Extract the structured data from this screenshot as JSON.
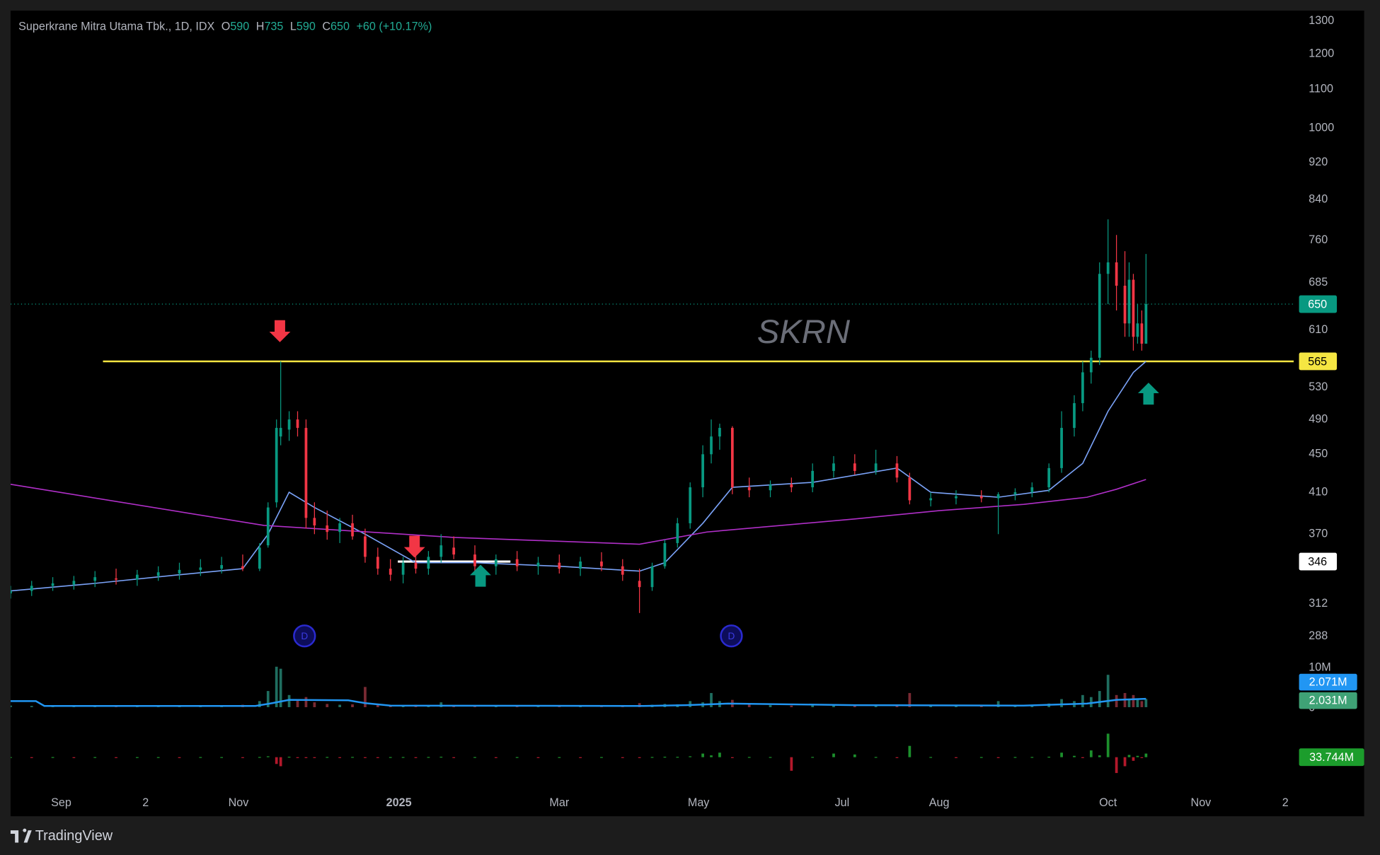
{
  "header": {
    "symbol": "Superkrane Mitra Utama Tbk., 1D, IDX",
    "ohlc": [
      {
        "key": "O",
        "value": 590
      },
      {
        "key": "H",
        "value": 735
      },
      {
        "key": "L",
        "value": 590
      },
      {
        "key": "C",
        "value": 650
      }
    ],
    "change": "+60 (+10.17%)"
  },
  "watermark": "SKRN",
  "dividends": [
    "D",
    "D"
  ],
  "brand": "TradingView",
  "chart_data": [
    {
      "type": "candlestick",
      "x": [
        0,
        5,
        10,
        15,
        20,
        25,
        30,
        35,
        40,
        45,
        50,
        55,
        59,
        61,
        63,
        64,
        66,
        68,
        70,
        72,
        75,
        78,
        81,
        84,
        87,
        90,
        93,
        96,
        99,
        102,
        105,
        110,
        115,
        120,
        125,
        130,
        135,
        140,
        145,
        149,
        152,
        155,
        158,
        161,
        164,
        166,
        168,
        171,
        175,
        180,
        185,
        190,
        195,
        200,
        205,
        210,
        213,
        218,
        224,
        230,
        234,
        238,
        242,
        246,
        249,
        252,
        254,
        256,
        258,
        260,
        262,
        264,
        265,
        266,
        267,
        268,
        269
      ],
      "open": [
        320,
        322,
        326,
        327,
        330,
        332,
        331,
        334,
        336,
        339,
        340,
        342,
        340,
        360,
        400,
        470,
        478,
        490,
        480,
        385,
        378,
        372,
        380,
        368,
        350,
        340,
        335,
        345,
        340,
        350,
        358,
        352,
        342,
        348,
        342,
        345,
        340,
        346,
        342,
        330,
        325,
        342,
        362,
        380,
        415,
        450,
        470,
        480,
        415,
        412,
        418,
        415,
        432,
        440,
        432,
        440,
        425,
        402,
        404,
        406,
        404,
        408,
        410,
        415,
        435,
        480,
        510,
        550,
        570,
        700,
        720,
        680,
        620,
        690,
        600,
        620,
        590
      ],
      "high": [
        326,
        330,
        333,
        334,
        338,
        340,
        339,
        342,
        345,
        348,
        350,
        352,
        362,
        400,
        490,
        565,
        500,
        500,
        490,
        400,
        392,
        385,
        388,
        375,
        358,
        348,
        350,
        352,
        355,
        370,
        368,
        360,
        352,
        355,
        350,
        352,
        350,
        354,
        348,
        340,
        345,
        365,
        385,
        420,
        460,
        490,
        485,
        482,
        425,
        422,
        425,
        440,
        448,
        450,
        455,
        448,
        430,
        410,
        412,
        412,
        410,
        414,
        420,
        440,
        500,
        520,
        565,
        580,
        720,
        800,
        770,
        740,
        720,
        700,
        650,
        640,
        735
      ],
      "low": [
        316,
        318,
        322,
        323,
        325,
        327,
        326,
        330,
        331,
        334,
        336,
        338,
        338,
        358,
        395,
        460,
        465,
        470,
        375,
        370,
        365,
        362,
        365,
        345,
        335,
        330,
        328,
        336,
        335,
        345,
        348,
        338,
        335,
        338,
        335,
        336,
        334,
        338,
        330,
        305,
        322,
        340,
        358,
        375,
        405,
        440,
        455,
        408,
        405,
        405,
        410,
        410,
        425,
        428,
        428,
        420,
        398,
        396,
        398,
        400,
        370,
        402,
        405,
        410,
        430,
        470,
        500,
        535,
        560,
        650,
        640,
        600,
        600,
        580,
        590,
        580,
        590
      ],
      "close": [
        322,
        326,
        328,
        330,
        333,
        331,
        335,
        337,
        339,
        341,
        343,
        340,
        358,
        395,
        480,
        480,
        490,
        480,
        385,
        378,
        372,
        380,
        368,
        350,
        340,
        335,
        345,
        340,
        350,
        360,
        352,
        342,
        348,
        342,
        345,
        340,
        346,
        342,
        335,
        325,
        342,
        362,
        380,
        415,
        450,
        470,
        480,
        415,
        412,
        418,
        415,
        432,
        440,
        432,
        440,
        425,
        402,
        404,
        406,
        404,
        408,
        410,
        415,
        435,
        480,
        510,
        550,
        570,
        700,
        720,
        680,
        620,
        690,
        600,
        620,
        590,
        650
      ],
      "up_color": "#089981",
      "down_color": "#f23645",
      "xlim": [
        0,
        304
      ],
      "xticks": [
        {
          "value": 12,
          "label": "Sep"
        },
        {
          "value": 32,
          "label": "2"
        },
        {
          "value": 54,
          "label": "Nov"
        },
        {
          "value": 92,
          "label": "2025"
        },
        {
          "value": 130,
          "label": "Mar"
        },
        {
          "value": 163,
          "label": "May"
        },
        {
          "value": 197,
          "label": "Jul"
        },
        {
          "value": 220,
          "label": "Aug"
        },
        {
          "value": 260,
          "label": "Oct"
        },
        {
          "value": 282,
          "label": "Nov"
        },
        {
          "value": 302,
          "label": "2"
        }
      ],
      "ylim": [
        275,
        1334
      ],
      "log_scale": true,
      "yticks": [
        288,
        312,
        370,
        410,
        450,
        490,
        530,
        610,
        685,
        760,
        840,
        920,
        1000,
        1100,
        1200,
        1300
      ],
      "series": [
        {
          "type": "line",
          "color": "#7aa2f7",
          "x": [
            0,
            20,
            40,
            55,
            61,
            66,
            72,
            84,
            96,
            110,
            130,
            149,
            155,
            164,
            171,
            190,
            210,
            218,
            234,
            246,
            254,
            260,
            266,
            269
          ],
          "values": [
            322,
            328,
            335,
            340,
            370,
            410,
            395,
            370,
            345,
            345,
            342,
            338,
            345,
            380,
            415,
            420,
            435,
            410,
            405,
            412,
            440,
            500,
            550,
            565
          ]
        },
        {
          "type": "line",
          "color": "#b02fc8",
          "x": [
            0,
            60,
            105,
            149,
            165,
            200,
            220,
            240,
            255,
            262,
            269
          ],
          "values": [
            418,
            378,
            367,
            361,
            372,
            384,
            392,
            398,
            405,
            413,
            423
          ]
        }
      ],
      "levels": [
        {
          "value": 565,
          "color": "#f5e642"
        },
        {
          "value": 346,
          "color": "#ffffff"
        },
        {
          "value": 650,
          "color": "#089981"
        }
      ]
    },
    {
      "type": "bar",
      "values": [
        400000,
        300000,
        350000,
        300000,
        400000,
        500000,
        350000,
        400000,
        450000,
        500000,
        400000,
        600000,
        1500000,
        4000000,
        10000000,
        9500000,
        3000000,
        2000000,
        2500000,
        1200000,
        800000,
        600000,
        700000,
        5000000,
        700000,
        500000,
        400000,
        600000,
        500000,
        1200000,
        500000,
        400000,
        350000,
        400000,
        300000,
        350000,
        300000,
        400000,
        350000,
        1000000,
        600000,
        800000,
        700000,
        1500000,
        1200000,
        3500000,
        1500000,
        1800000,
        700000,
        500000,
        400000,
        800000,
        700000,
        500000,
        600000,
        500000,
        3500000,
        600000,
        400000,
        350000,
        1500000,
        400000,
        500000,
        900000,
        2000000,
        1500000,
        3000000,
        2500000,
        4000000,
        8000000,
        3000000,
        3500000,
        2000000,
        3000000,
        2000000,
        1500000,
        {
          "value": 2031000,
          "label": "2.031M"
        }
      ],
      "up_color": "#1f6e60",
      "down_color": "#7a2a33",
      "tag_color": "#3fa276",
      "ylim": [
        0,
        10000000
      ],
      "yticks": [
        0,
        {
          "value": 10000000,
          "label": "10M"
        }
      ],
      "series": [
        {
          "type": "line",
          "color": "#2196f3",
          "x": [
            0,
            6,
            8,
            58,
            62,
            66,
            80,
            84,
            90,
            150,
            160,
            170,
            200,
            240,
            255,
            262,
            269
          ],
          "values": [
            1500000,
            1500000,
            300000,
            300000,
            1000000,
            1800000,
            1700000,
            1000000,
            400000,
            300000,
            500000,
            900000,
            500000,
            400000,
            900000,
            1800000,
            {
              "value": 2071000,
              "label": "2.071M"
            }
          ]
        }
      ]
    },
    {
      "type": "bar",
      "values": [
        200000,
        -150000,
        300000,
        -200000,
        250000,
        -300000,
        150000,
        200000,
        -250000,
        300000,
        250000,
        -300000,
        500000,
        2000000,
        -15000000,
        -20000000,
        1000000,
        -800000,
        -2000000,
        -600000,
        500000,
        -400000,
        600000,
        -1500000,
        -500000,
        300000,
        400000,
        -300000,
        500000,
        1000000,
        -400000,
        300000,
        -200000,
        250000,
        -300000,
        200000,
        -250000,
        300000,
        -400000,
        -1000000,
        500000,
        1000000,
        800000,
        2000000,
        8000000,
        4000000,
        10000000,
        -2000000,
        500000,
        400000,
        -30000000,
        600000,
        8000000,
        6000000,
        500000,
        -500000,
        25000000,
        400000,
        -300000,
        300000,
        -600000,
        400000,
        500000,
        1000000,
        10000000,
        3000000,
        -2000000,
        15000000,
        4000000,
        52000000,
        -35000000,
        -20000000,
        5000000,
        -8000000,
        3000000,
        -2000000,
        8000000
      ],
      "up_color": "#1c8f2c",
      "down_color": "#b3182b",
      "ylim": [
        -45000000,
        60000000
      ],
      "current": {
        "value": 33744000,
        "label": "33.744M"
      }
    }
  ]
}
